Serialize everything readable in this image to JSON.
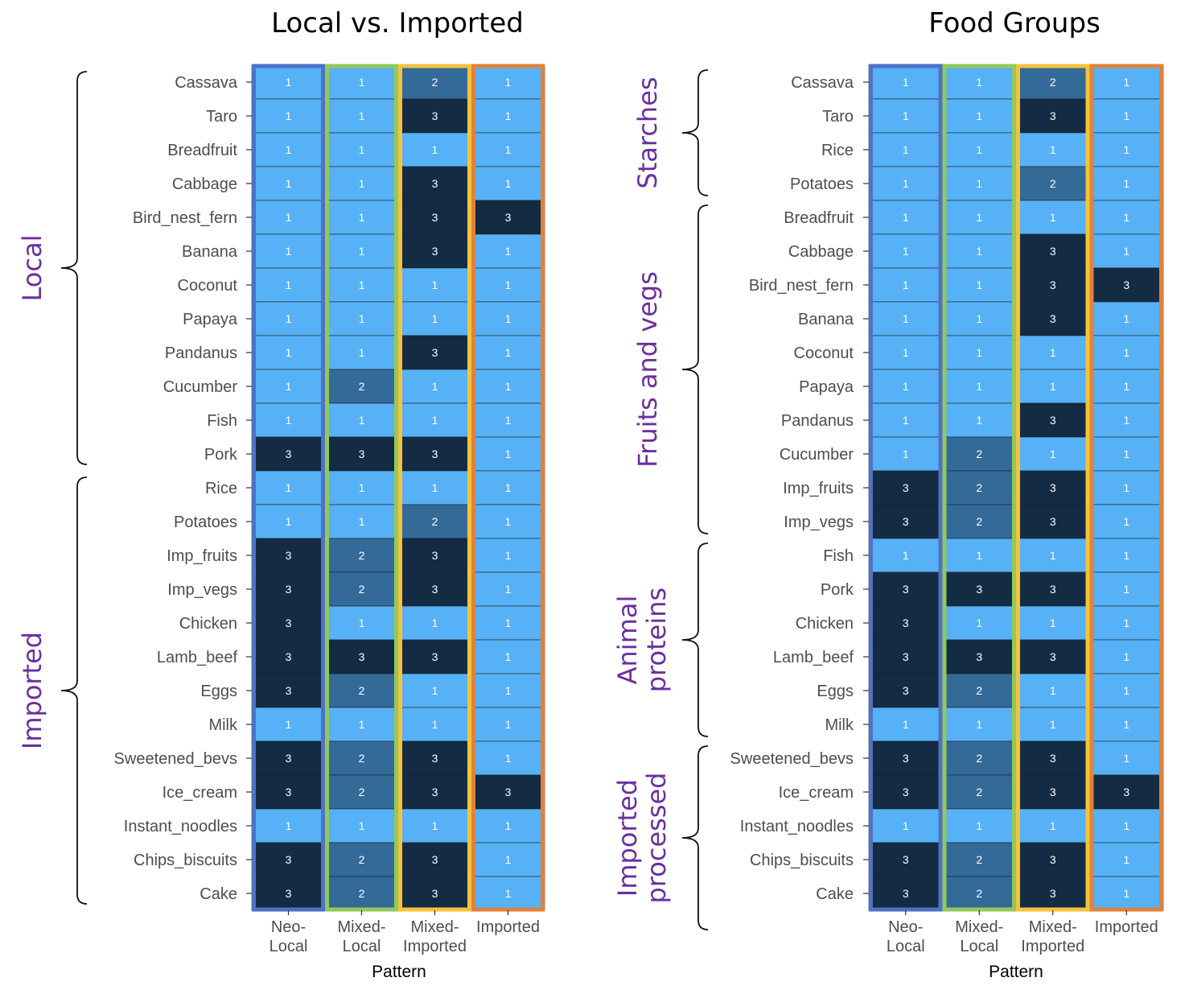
{
  "colors": {
    "level_1": "#56b1f7",
    "level_2": "#336a98",
    "level_3": "#132b43",
    "pattern_borders": [
      "#4f72c5",
      "#92c95c",
      "#f5c33b",
      "#e0823a"
    ],
    "group_label": "#6b2fa0"
  },
  "chart_data": [
    {
      "type": "heatmap",
      "title": "Local vs. Imported",
      "xlabel": "Pattern",
      "ylabel": "",
      "columns": [
        "Neo-\nLocal",
        "Mixed-\nLocal",
        "Mixed-\nImported",
        "Imported"
      ],
      "groups": [
        {
          "label": "Local",
          "rows": 12
        },
        {
          "label": "Imported",
          "rows": 13
        }
      ],
      "rows": [
        {
          "name": "Cassava",
          "values": [
            1,
            1,
            2,
            1
          ]
        },
        {
          "name": "Taro",
          "values": [
            1,
            1,
            3,
            1
          ]
        },
        {
          "name": "Breadfruit",
          "values": [
            1,
            1,
            1,
            1
          ]
        },
        {
          "name": "Cabbage",
          "values": [
            1,
            1,
            3,
            1
          ]
        },
        {
          "name": "Bird_nest_fern",
          "values": [
            1,
            1,
            3,
            3
          ]
        },
        {
          "name": "Banana",
          "values": [
            1,
            1,
            3,
            1
          ]
        },
        {
          "name": "Coconut",
          "values": [
            1,
            1,
            1,
            1
          ]
        },
        {
          "name": "Papaya",
          "values": [
            1,
            1,
            1,
            1
          ]
        },
        {
          "name": "Pandanus",
          "values": [
            1,
            1,
            3,
            1
          ]
        },
        {
          "name": "Cucumber",
          "values": [
            1,
            2,
            1,
            1
          ]
        },
        {
          "name": "Fish",
          "values": [
            1,
            1,
            1,
            1
          ]
        },
        {
          "name": "Pork",
          "values": [
            3,
            3,
            3,
            1
          ]
        },
        {
          "name": "Rice",
          "values": [
            1,
            1,
            1,
            1
          ]
        },
        {
          "name": "Potatoes",
          "values": [
            1,
            1,
            2,
            1
          ]
        },
        {
          "name": "Imp_fruits",
          "values": [
            3,
            2,
            3,
            1
          ]
        },
        {
          "name": "Imp_vegs",
          "values": [
            3,
            2,
            3,
            1
          ]
        },
        {
          "name": "Chicken",
          "values": [
            3,
            1,
            1,
            1
          ]
        },
        {
          "name": "Lamb_beef",
          "values": [
            3,
            3,
            3,
            1
          ]
        },
        {
          "name": "Eggs",
          "values": [
            3,
            2,
            1,
            1
          ]
        },
        {
          "name": "Milk",
          "values": [
            1,
            1,
            1,
            1
          ]
        },
        {
          "name": "Sweetened_bevs",
          "values": [
            3,
            2,
            3,
            1
          ]
        },
        {
          "name": "Ice_cream",
          "values": [
            3,
            2,
            3,
            3
          ]
        },
        {
          "name": "Instant_noodles",
          "values": [
            1,
            1,
            1,
            1
          ]
        },
        {
          "name": "Chips_biscuits",
          "values": [
            3,
            2,
            3,
            1
          ]
        },
        {
          "name": "Cake",
          "values": [
            3,
            2,
            3,
            1
          ]
        }
      ]
    },
    {
      "type": "heatmap",
      "title": "Food Groups",
      "xlabel": "Pattern",
      "ylabel": "",
      "columns": [
        "Neo-\nLocal",
        "Mixed-\nLocal",
        "Mixed-\nImported",
        "Imported"
      ],
      "groups": [
        {
          "label": "Starches",
          "rows": 4
        },
        {
          "label": "Fruits and vegs",
          "rows": 10
        },
        {
          "label": "Animal\nproteins",
          "rows": 6
        },
        {
          "label": "Imported\nprocessed",
          "rows": 5
        }
      ],
      "rows": [
        {
          "name": "Cassava",
          "values": [
            1,
            1,
            2,
            1
          ]
        },
        {
          "name": "Taro",
          "values": [
            1,
            1,
            3,
            1
          ]
        },
        {
          "name": "Rice",
          "values": [
            1,
            1,
            1,
            1
          ]
        },
        {
          "name": "Potatoes",
          "values": [
            1,
            1,
            2,
            1
          ]
        },
        {
          "name": "Breadfruit",
          "values": [
            1,
            1,
            1,
            1
          ]
        },
        {
          "name": "Cabbage",
          "values": [
            1,
            1,
            3,
            1
          ]
        },
        {
          "name": "Bird_nest_fern",
          "values": [
            1,
            1,
            3,
            3
          ]
        },
        {
          "name": "Banana",
          "values": [
            1,
            1,
            3,
            1
          ]
        },
        {
          "name": "Coconut",
          "values": [
            1,
            1,
            1,
            1
          ]
        },
        {
          "name": "Papaya",
          "values": [
            1,
            1,
            1,
            1
          ]
        },
        {
          "name": "Pandanus",
          "values": [
            1,
            1,
            3,
            1
          ]
        },
        {
          "name": "Cucumber",
          "values": [
            1,
            2,
            1,
            1
          ]
        },
        {
          "name": "Imp_fruits",
          "values": [
            3,
            2,
            3,
            1
          ]
        },
        {
          "name": "Imp_vegs",
          "values": [
            3,
            2,
            3,
            1
          ]
        },
        {
          "name": "Fish",
          "values": [
            1,
            1,
            1,
            1
          ]
        },
        {
          "name": "Pork",
          "values": [
            3,
            3,
            3,
            1
          ]
        },
        {
          "name": "Chicken",
          "values": [
            3,
            1,
            1,
            1
          ]
        },
        {
          "name": "Lamb_beef",
          "values": [
            3,
            3,
            3,
            1
          ]
        },
        {
          "name": "Eggs",
          "values": [
            3,
            2,
            1,
            1
          ]
        },
        {
          "name": "Milk",
          "values": [
            1,
            1,
            1,
            1
          ]
        },
        {
          "name": "Sweetened_bevs",
          "values": [
            3,
            2,
            3,
            1
          ]
        },
        {
          "name": "Ice_cream",
          "values": [
            3,
            2,
            3,
            3
          ]
        },
        {
          "name": "Instant_noodles",
          "values": [
            1,
            1,
            1,
            1
          ]
        },
        {
          "name": "Chips_biscuits",
          "values": [
            3,
            2,
            3,
            1
          ]
        },
        {
          "name": "Cake",
          "values": [
            3,
            2,
            3,
            1
          ]
        }
      ]
    }
  ]
}
